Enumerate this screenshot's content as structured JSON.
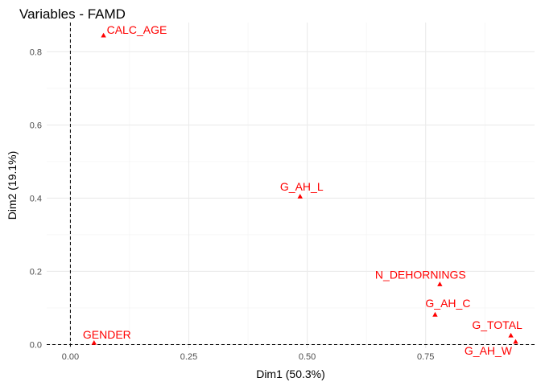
{
  "chart_data": {
    "type": "scatter",
    "title": "Variables - FAMD",
    "xlabel": "Dim1 (50.3%)",
    "ylabel": "Dim2 (19.1%)",
    "xlim": [
      -0.05,
      0.98
    ],
    "ylim": [
      -0.01,
      0.88
    ],
    "x_ticks": [
      0.0,
      0.25,
      0.5,
      0.75
    ],
    "x_tick_labels": [
      "0.00",
      "0.25",
      "0.50",
      "0.75"
    ],
    "y_ticks": [
      0.0,
      0.2,
      0.4,
      0.6,
      0.8
    ],
    "y_tick_labels": [
      "0.0",
      "0.2",
      "0.4",
      "0.6",
      "0.8"
    ],
    "grid": true,
    "reference_lines": {
      "x": 0,
      "y": 0
    },
    "point_color": "#ff0000",
    "points": [
      {
        "label": "CALC_AGE",
        "x": 0.07,
        "y": 0.845
      },
      {
        "label": "G_AH_L",
        "x": 0.485,
        "y": 0.405
      },
      {
        "label": "N_DEHORNINGS",
        "x": 0.78,
        "y": 0.165
      },
      {
        "label": "G_AH_C",
        "x": 0.77,
        "y": 0.082
      },
      {
        "label": "G_TOTAL",
        "x": 0.93,
        "y": 0.025
      },
      {
        "label": "G_AH_W",
        "x": 0.94,
        "y": 0.008
      },
      {
        "label": "GENDER",
        "x": 0.05,
        "y": 0.005
      }
    ]
  }
}
